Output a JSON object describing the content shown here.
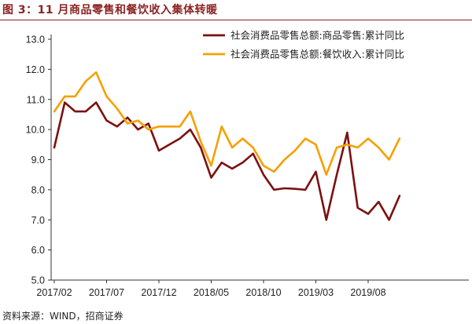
{
  "title": "图 3：11 月商品零售和餐饮收入集体转暖",
  "source": "资料来源：WIND，招商证券",
  "chart_data": {
    "type": "line",
    "x": [
      "2017/02",
      "2017/03",
      "2017/04",
      "2017/05",
      "2017/06",
      "2017/07",
      "2017/08",
      "2017/09",
      "2017/10",
      "2017/11",
      "2017/12",
      "2018/01",
      "2018/02",
      "2018/03",
      "2018/04",
      "2018/05",
      "2018/06",
      "2018/07",
      "2018/08",
      "2018/09",
      "2018/10",
      "2018/11",
      "2018/12",
      "2019/01",
      "2019/02",
      "2019/03",
      "2019/04",
      "2019/05",
      "2019/06",
      "2019/07",
      "2019/08",
      "2019/09",
      "2019/10",
      "2019/11"
    ],
    "x_tick_labels": [
      "2017/02",
      "2017/07",
      "2017/12",
      "2018/05",
      "2018/10",
      "2019/03",
      "2019/08"
    ],
    "series": [
      {
        "name": "社会消费品零售总额:商品零售:累计同比",
        "color": "#7B1010",
        "values": [
          9.4,
          10.9,
          10.6,
          10.6,
          10.9,
          10.3,
          10.1,
          10.4,
          10.0,
          10.2,
          9.3,
          9.5,
          9.7,
          10.0,
          9.4,
          8.4,
          8.9,
          8.7,
          8.9,
          9.2,
          8.5,
          8.0,
          8.05,
          8.03,
          8.0,
          8.6,
          7.0,
          8.5,
          9.9,
          7.4,
          7.2,
          7.6,
          7.0,
          7.8
        ]
      },
      {
        "name": "社会消费品零售总额:餐饮收入:累计同比",
        "color": "#F5A000",
        "values": [
          10.6,
          11.1,
          11.1,
          11.6,
          11.9,
          11.1,
          10.7,
          10.2,
          10.3,
          10.0,
          10.1,
          10.1,
          10.1,
          10.6,
          9.6,
          8.8,
          10.1,
          9.4,
          9.7,
          9.4,
          8.8,
          8.6,
          9.0,
          9.3,
          9.7,
          9.5,
          8.5,
          9.4,
          9.5,
          9.4,
          9.7,
          9.4,
          9.0,
          9.7
        ]
      }
    ],
    "y_ticks": [
      "5.0",
      "6.0",
      "7.0",
      "8.0",
      "9.0",
      "10.0",
      "11.0",
      "12.0",
      "13.0"
    ],
    "ylim": [
      5.0,
      13.0
    ],
    "grid": false,
    "legend": "top-right"
  }
}
